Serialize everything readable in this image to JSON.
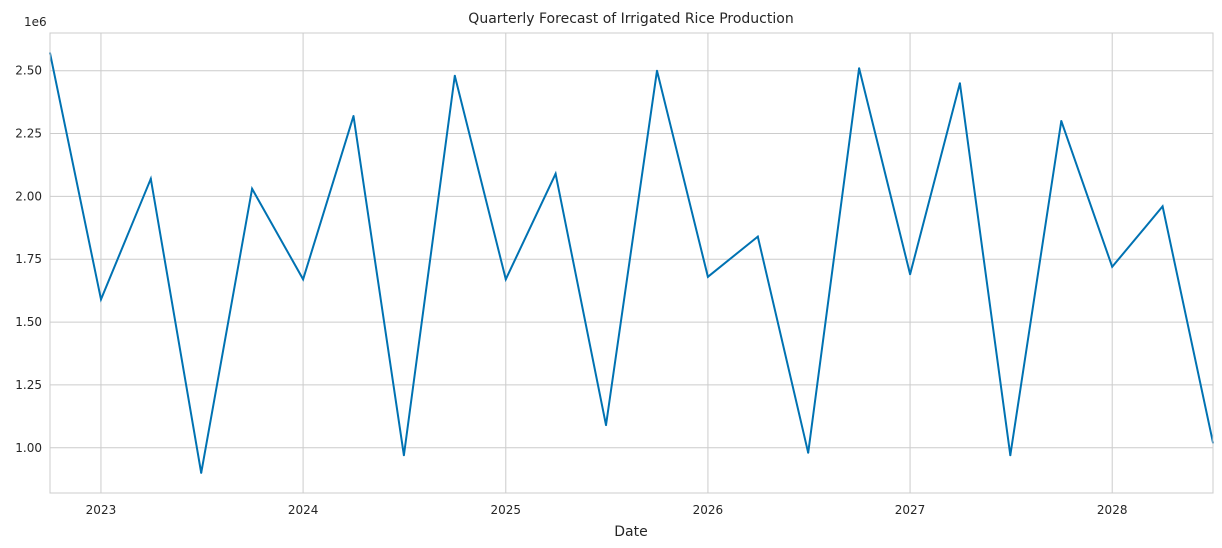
{
  "chart_data": {
    "type": "line",
    "title": "Quarterly Forecast of Irrigated Rice Production",
    "xlabel": "Date",
    "ylabel": "",
    "y_offset_text": "1e6",
    "grid": true,
    "legend": "none",
    "x_tick_labels": [
      "2023",
      "2024",
      "2025",
      "2026",
      "2027",
      "2028"
    ],
    "y_tick_labels": [
      "1.00",
      "1.25",
      "1.50",
      "1.75",
      "2.00",
      "2.25",
      "2.50"
    ],
    "xlim": [
      "2022-10-01",
      "2028-07-01"
    ],
    "ylim": [
      0.82,
      2.65
    ],
    "series": [
      {
        "color": "#0072b2",
        "x": [
          "2022-10-01",
          "2023-01-01",
          "2023-04-01",
          "2023-07-01",
          "2023-10-01",
          "2024-01-01",
          "2024-04-01",
          "2024-07-01",
          "2024-10-01",
          "2025-01-01",
          "2025-04-01",
          "2025-07-01",
          "2025-10-01",
          "2026-01-01",
          "2026-04-01",
          "2026-07-01",
          "2026-10-01",
          "2027-01-01",
          "2027-04-01",
          "2027-07-01",
          "2027-10-01",
          "2028-01-01",
          "2028-04-01",
          "2028-07-01"
        ],
        "values": [
          2.57,
          1.59,
          2.07,
          0.9,
          2.03,
          1.67,
          2.32,
          0.97,
          2.48,
          1.67,
          2.09,
          1.09,
          2.5,
          1.68,
          1.84,
          0.98,
          2.51,
          1.69,
          2.45,
          0.97,
          2.3,
          1.72,
          1.96,
          1.02
        ]
      }
    ]
  }
}
